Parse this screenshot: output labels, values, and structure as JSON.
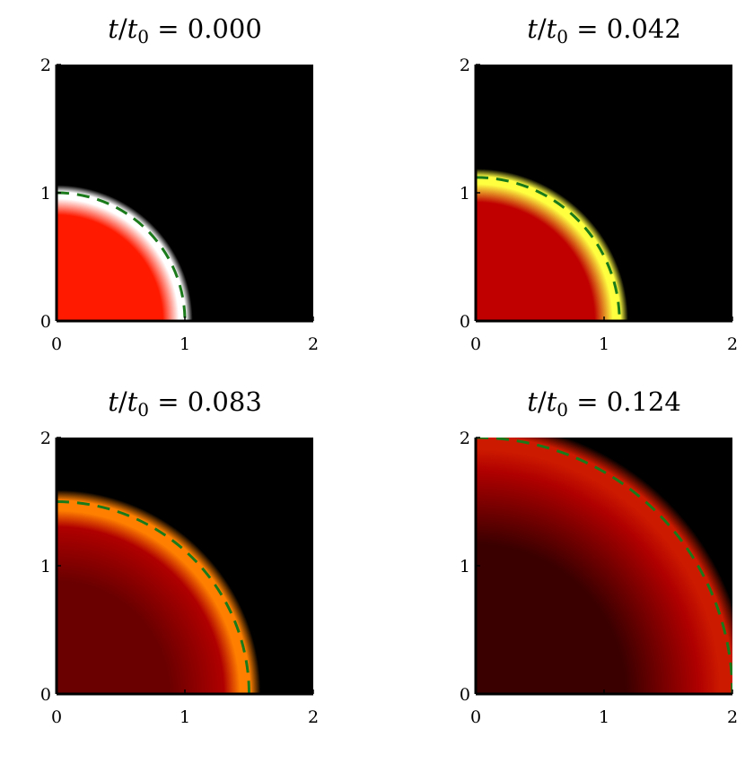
{
  "chart_data": [
    {
      "type": "heatmap",
      "title": "t/t₀ = 0.000",
      "time_value": "0.000",
      "xlim": [
        0,
        2
      ],
      "ylim": [
        0,
        2
      ],
      "xticks": [
        "0",
        "1",
        "2"
      ],
      "yticks": [
        "0",
        "1",
        "2"
      ],
      "front_radius": 1.0,
      "rim_color": "#ffffff",
      "interior_color": "#ff1a00",
      "front_line_color": "#1a7a1a"
    },
    {
      "type": "heatmap",
      "title": "t/t₀ = 0.042",
      "time_value": "0.042",
      "xlim": [
        0,
        2
      ],
      "ylim": [
        0,
        2
      ],
      "xticks": [
        "0",
        "1",
        "2"
      ],
      "yticks": [
        "0",
        "1",
        "2"
      ],
      "front_radius": 1.12,
      "rim_color": "#ffff40",
      "interior_color": "#c00000",
      "front_line_color": "#1a7a1a"
    },
    {
      "type": "heatmap",
      "title": "t/t₀ = 0.083",
      "time_value": "0.083",
      "xlim": [
        0,
        2
      ],
      "ylim": [
        0,
        2
      ],
      "xticks": [
        "0",
        "1",
        "2"
      ],
      "yticks": [
        "0",
        "1",
        "2"
      ],
      "front_radius": 1.5,
      "rim_color": "#ff8000",
      "interior_color": "#6a0000",
      "front_line_color": "#1a7a1a"
    },
    {
      "type": "heatmap",
      "title": "t/t₀ = 0.124",
      "time_value": "0.124",
      "xlim": [
        0,
        2
      ],
      "ylim": [
        0,
        2
      ],
      "xticks": [
        "0",
        "1",
        "2"
      ],
      "yticks": [
        "0",
        "1",
        "2"
      ],
      "front_radius": 2.0,
      "rim_color": "#cc1a00",
      "interior_color": "#3a0000",
      "front_line_color": "#1a7a1a"
    }
  ]
}
